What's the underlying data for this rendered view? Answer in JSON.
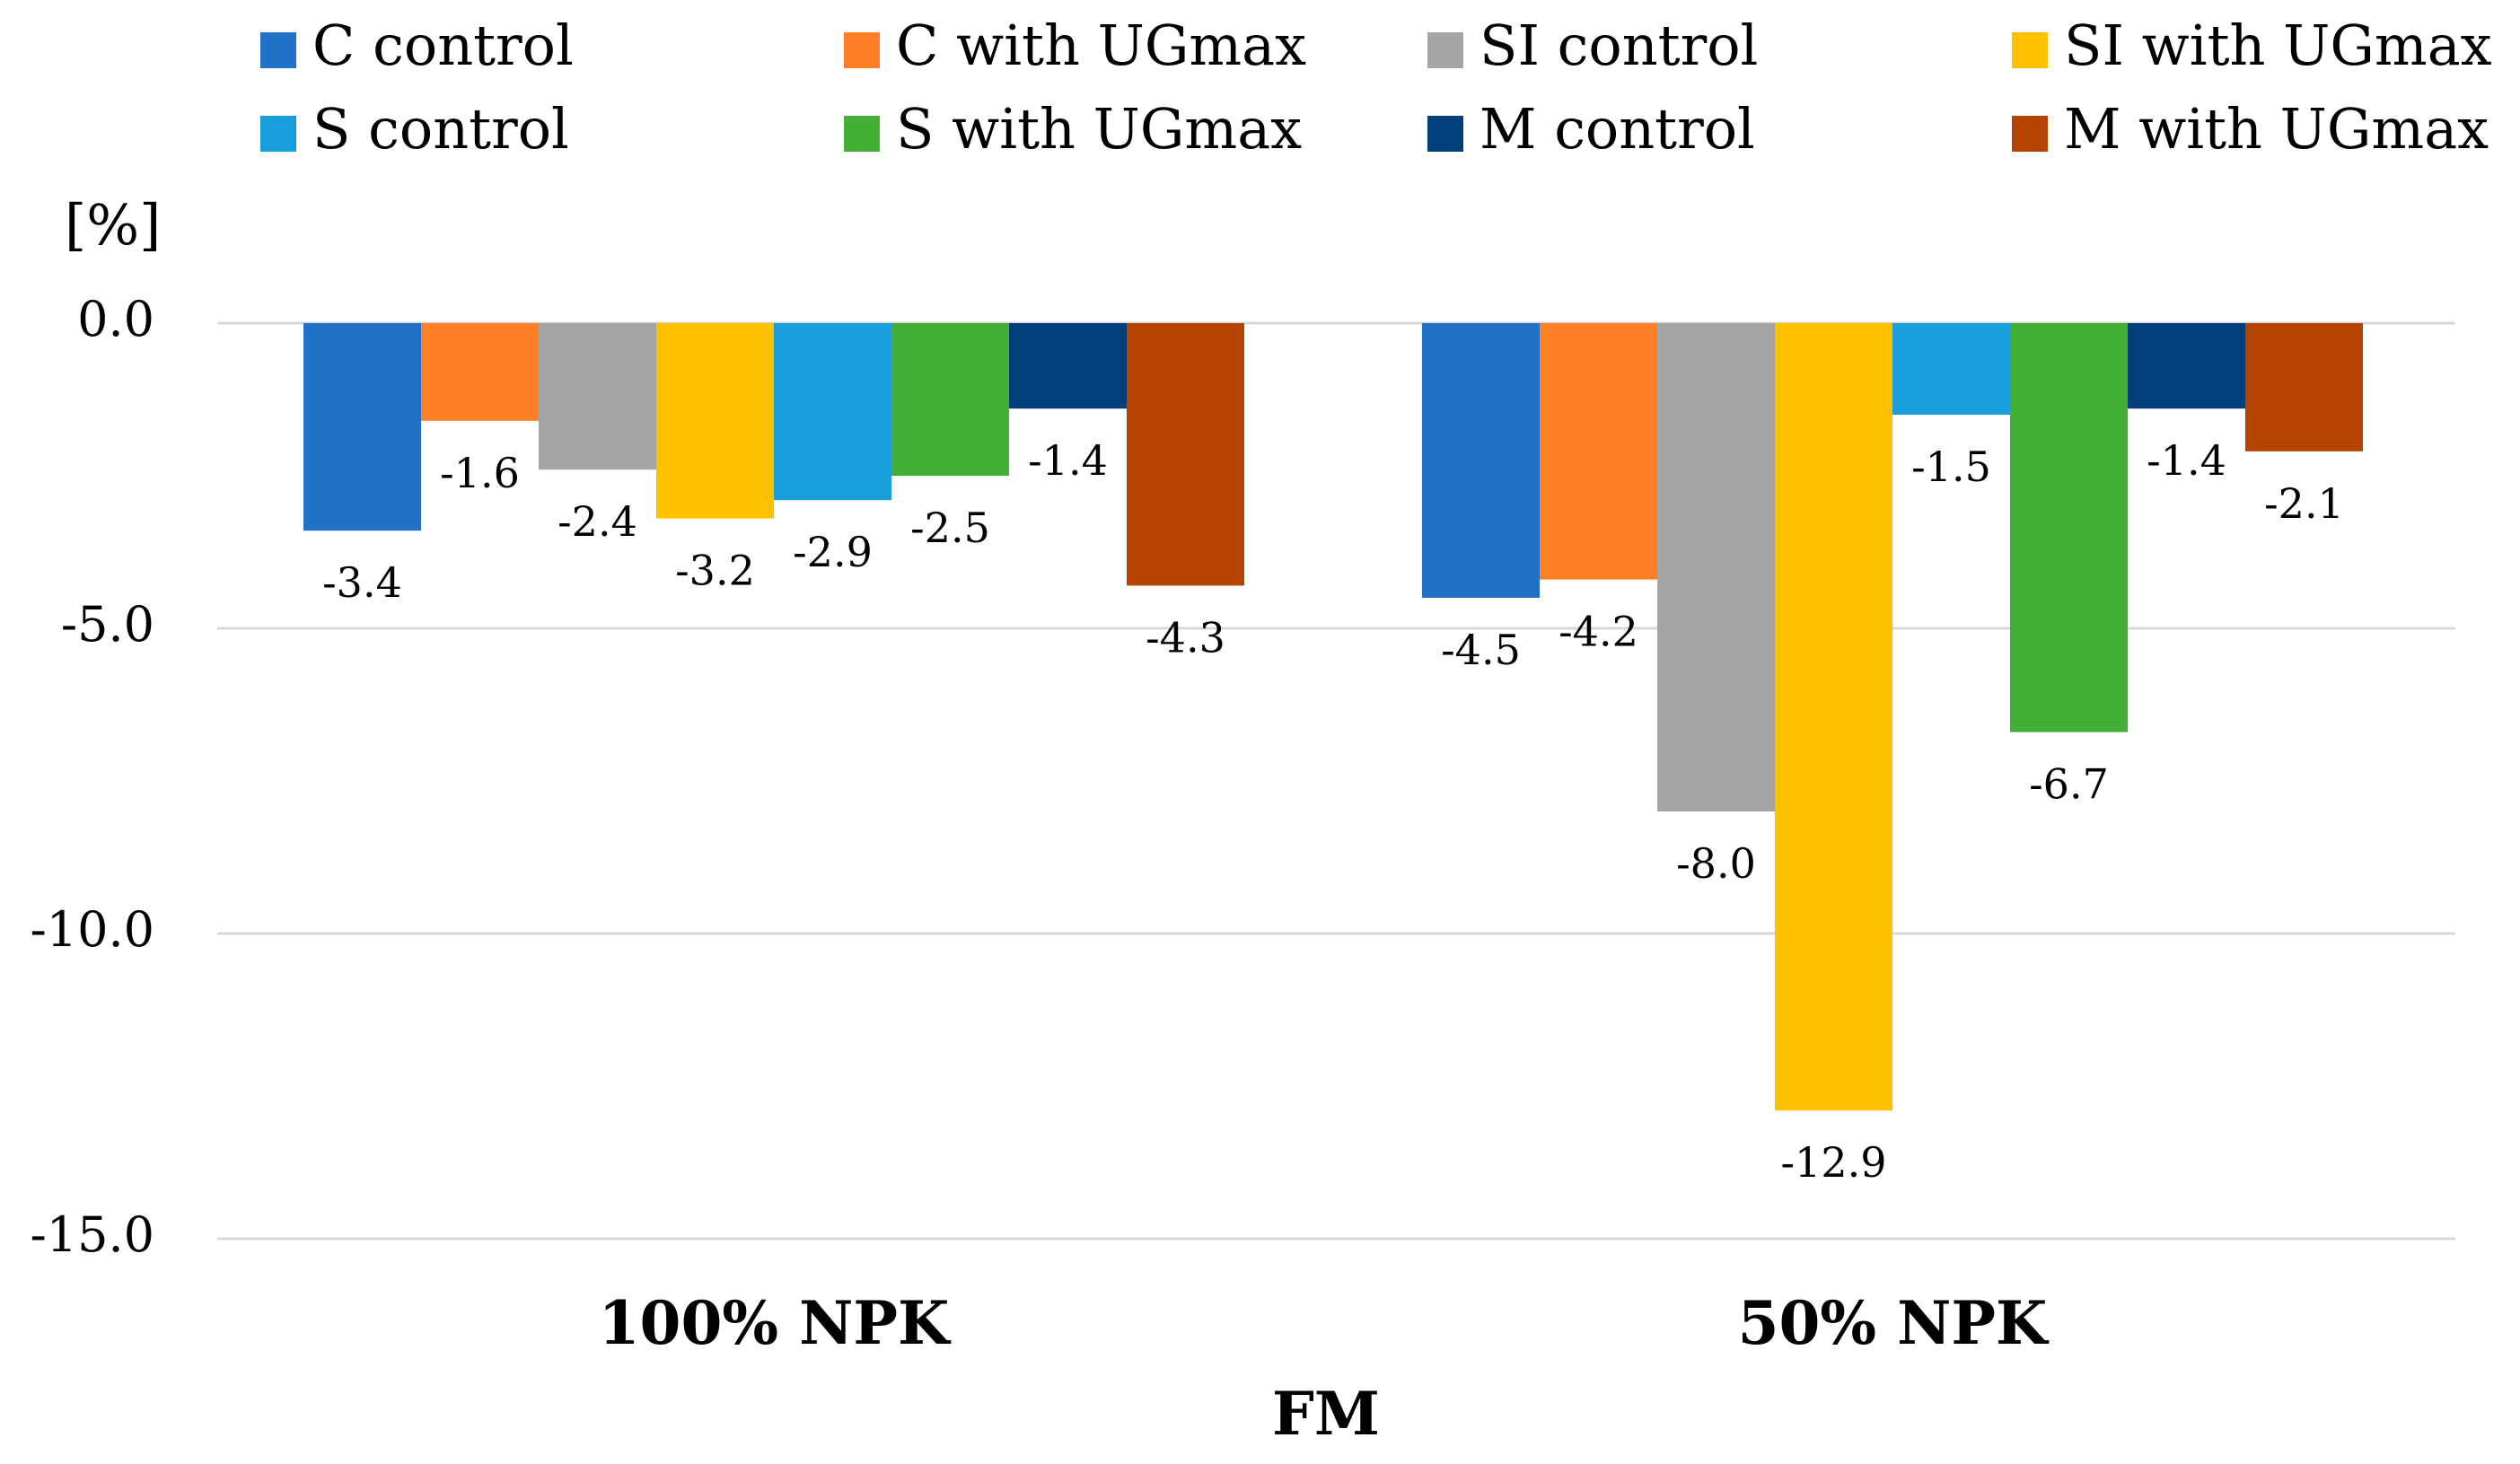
{
  "chart_data": {
    "type": "bar",
    "title": "",
    "ylabel": "[%]",
    "xlabel": "FM",
    "ylim": [
      -15,
      0
    ],
    "yticks": [
      0,
      -5,
      -10,
      -15
    ],
    "ytick_labels": [
      "0.0",
      "-5.0",
      "-10.0",
      "-15.0"
    ],
    "grid": true,
    "legend_position": "top",
    "categories": [
      "100% NPK",
      "50% NPK"
    ],
    "series": [
      {
        "name": "C control",
        "color": "#1F72C8",
        "values": [
          -3.4,
          -4.5
        ]
      },
      {
        "name": "C with UGmax",
        "color": "#FF7F27",
        "values": [
          -1.6,
          -4.2
        ]
      },
      {
        "name": "SI control",
        "color": "#A5A5A5",
        "values": [
          -2.4,
          -8.0
        ]
      },
      {
        "name": "SI with UGmax",
        "color": "#FFC000",
        "values": [
          -3.2,
          -12.9
        ]
      },
      {
        "name": "S control",
        "color": "#1A9EDB",
        "values": [
          -2.9,
          -1.5
        ]
      },
      {
        "name": "S with UGmax",
        "color": "#44AF36",
        "values": [
          -2.5,
          -6.7
        ]
      },
      {
        "name": "M control",
        "color": "#003F7A",
        "values": [
          -1.4,
          -1.4
        ]
      },
      {
        "name": "M with UGmax",
        "color": "#B54400",
        "values": [
          -4.3,
          -2.1
        ]
      }
    ]
  }
}
